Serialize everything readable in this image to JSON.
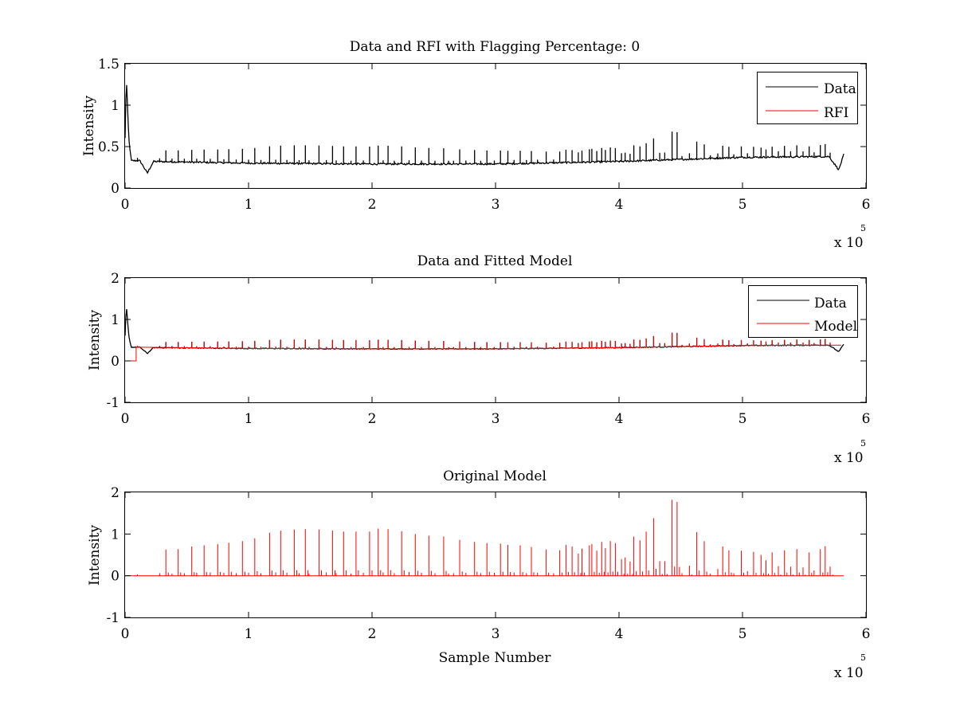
{
  "chart_data": [
    {
      "type": "line",
      "title": "Data and RFI with Flagging Percentage: 0",
      "xlabel": "",
      "ylabel": "Intensity",
      "xlim": [
        0,
        6
      ],
      "ylim": [
        0,
        1.5
      ],
      "x_ticks": [
        "0",
        "1",
        "2",
        "3",
        "4",
        "5",
        "6"
      ],
      "y_ticks": [
        "0",
        "0.5",
        "1",
        "1.5"
      ],
      "x_exponent_label": "x 10",
      "x_exponent_power": "5",
      "legend": {
        "placement": "top-right",
        "entries": [
          {
            "label": "Data",
            "color": "#000000"
          },
          {
            "label": "RFI",
            "color": "#ff0000"
          }
        ]
      },
      "series": [
        {
          "name": "Data",
          "color": "#000000",
          "baseline": [
            [
              0,
              0.6
            ],
            [
              0.01,
              1.35
            ],
            [
              0.03,
              0.6
            ],
            [
              0.05,
              0.33
            ],
            [
              0.12,
              0.33
            ],
            [
              0.18,
              0.18
            ],
            [
              0.23,
              0.32
            ],
            [
              1,
              0.3
            ],
            [
              2,
              0.29
            ],
            [
              3,
              0.29
            ],
            [
              4,
              0.32
            ],
            [
              5,
              0.37
            ],
            [
              5.7,
              0.38
            ],
            [
              5.78,
              0.22
            ],
            [
              5.83,
              0.45
            ],
            [
              5.82,
              0.38
            ]
          ]
        },
        {
          "name": "RFI",
          "color": "#ff0000",
          "baseline": []
        }
      ]
    },
    {
      "type": "line",
      "title": "Data and Fitted Model",
      "xlabel": "",
      "ylabel": "Intensity",
      "xlim": [
        0,
        6
      ],
      "ylim": [
        -1,
        2
      ],
      "x_ticks": [
        "0",
        "1",
        "2",
        "3",
        "4",
        "5",
        "6"
      ],
      "y_ticks": [
        "-1",
        "0",
        "1",
        "2"
      ],
      "x_exponent_label": "x 10",
      "x_exponent_power": "5",
      "legend": {
        "placement": "top-right",
        "entries": [
          {
            "label": "Data",
            "color": "#000000"
          },
          {
            "label": "Model",
            "color": "#ff0000"
          }
        ]
      },
      "series": [
        {
          "name": "Data",
          "color": "#000000",
          "baseline": [
            [
              0,
              0.6
            ],
            [
              0.01,
              1.35
            ],
            [
              0.03,
              0.6
            ],
            [
              0.05,
              0.33
            ],
            [
              0.12,
              0.33
            ],
            [
              0.18,
              0.18
            ],
            [
              0.23,
              0.32
            ],
            [
              1,
              0.3
            ],
            [
              2,
              0.29
            ],
            [
              3,
              0.29
            ],
            [
              4,
              0.32
            ],
            [
              5,
              0.37
            ],
            [
              5.7,
              0.38
            ],
            [
              5.78,
              0.22
            ],
            [
              5.83,
              0.45
            ],
            [
              5.82,
              0.38
            ]
          ]
        },
        {
          "name": "Model",
          "color": "#ff0000",
          "baseline": [
            [
              0,
              0
            ],
            [
              0.09,
              0
            ],
            [
              0.09,
              0.33
            ],
            [
              1,
              0.3
            ],
            [
              2,
              0.29
            ],
            [
              3,
              0.29
            ],
            [
              4,
              0.32
            ],
            [
              5,
              0.37
            ],
            [
              5.8,
              0.38
            ]
          ]
        }
      ]
    },
    {
      "type": "line",
      "title": "Original Model",
      "xlabel": "Sample Number",
      "ylabel": "Intensity",
      "xlim": [
        0,
        6
      ],
      "ylim": [
        -1,
        2
      ],
      "x_ticks": [
        "0",
        "1",
        "2",
        "3",
        "4",
        "5",
        "6"
      ],
      "y_ticks": [
        "-1",
        "0",
        "1",
        "2"
      ],
      "x_exponent_label": "x 10",
      "x_exponent_power": "5",
      "series": [
        {
          "name": "",
          "color": "#ff0000",
          "baseline": [
            [
              0,
              0
            ],
            [
              5.82,
              0
            ]
          ]
        }
      ]
    }
  ],
  "spikes": {
    "x": [
      0.1,
      0.28,
      0.33,
      0.38,
      0.43,
      0.48,
      0.54,
      0.58,
      0.64,
      0.69,
      0.75,
      0.8,
      0.84,
      0.9,
      0.95,
      1.0,
      1.05,
      1.1,
      1.17,
      1.22,
      1.26,
      1.31,
      1.37,
      1.41,
      1.46,
      1.49,
      1.57,
      1.63,
      1.68,
      1.71,
      1.77,
      1.83,
      1.87,
      1.93,
      1.98,
      2.05,
      2.09,
      2.13,
      2.18,
      2.24,
      2.3,
      2.35,
      2.4,
      2.46,
      2.51,
      2.58,
      2.62,
      2.66,
      2.71,
      2.76,
      2.83,
      2.88,
      2.93,
      2.99,
      3.04,
      3.1,
      3.15,
      3.2,
      3.25,
      3.29,
      3.34,
      3.41,
      3.47,
      3.52,
      3.57,
      3.62,
      3.67,
      3.7,
      3.76,
      3.78,
      3.82,
      3.86,
      3.89,
      3.93,
      3.97,
      4.02,
      4.05,
      4.09,
      4.12,
      4.17,
      4.22,
      4.28,
      4.33,
      4.37,
      4.43,
      4.47,
      4.51,
      4.57,
      4.63,
      4.69,
      4.74,
      4.8,
      4.84,
      4.89,
      4.93,
      4.99,
      5.04,
      5.09,
      5.15,
      5.19,
      5.24,
      5.29,
      5.34,
      5.39,
      5.44,
      5.49,
      5.54,
      5.58,
      5.63,
      5.67,
      5.71
    ],
    "model_heights": [
      0.03,
      0.06,
      0.63,
      0.05,
      0.64,
      0.06,
      0.7,
      0.07,
      0.73,
      0.08,
      0.76,
      0.07,
      0.79,
      0.06,
      0.83,
      0.07,
      0.9,
      0.06,
      1.03,
      0.08,
      1.08,
      0.07,
      1.11,
      0.06,
      1.12,
      0.05,
      1.11,
      0.08,
      1.08,
      0.06,
      1.06,
      0.05,
      1.06,
      0.07,
      1.06,
      1.13,
      0.08,
      1.12,
      0.06,
      1.07,
      0.09,
      1.0,
      0.07,
      0.96,
      0.06,
      0.94,
      0.05,
      0.06,
      0.86,
      0.07,
      0.81,
      0.06,
      0.78,
      0.07,
      0.77,
      0.74,
      0.08,
      0.73,
      0.06,
      0.69,
      0.07,
      0.63,
      0.06,
      0.61,
      0.74,
      0.7,
      0.53,
      0.65,
      0.73,
      0.76,
      0.6,
      0.81,
      0.66,
      0.83,
      0.78,
      0.4,
      0.44,
      0.34,
      0.94,
      0.85,
      1.06,
      1.38,
      0.35,
      0.35,
      1.82,
      1.77,
      0.06,
      0.24,
      1.05,
      0.83,
      0.05,
      0.16,
      0.7,
      0.61,
      0.06,
      0.6,
      0.11,
      0.57,
      0.5,
      0.37,
      0.56,
      0.23,
      0.61,
      0.22,
      0.64,
      0.2,
      0.56,
      0.13,
      0.64,
      0.71,
      0.22
    ]
  }
}
